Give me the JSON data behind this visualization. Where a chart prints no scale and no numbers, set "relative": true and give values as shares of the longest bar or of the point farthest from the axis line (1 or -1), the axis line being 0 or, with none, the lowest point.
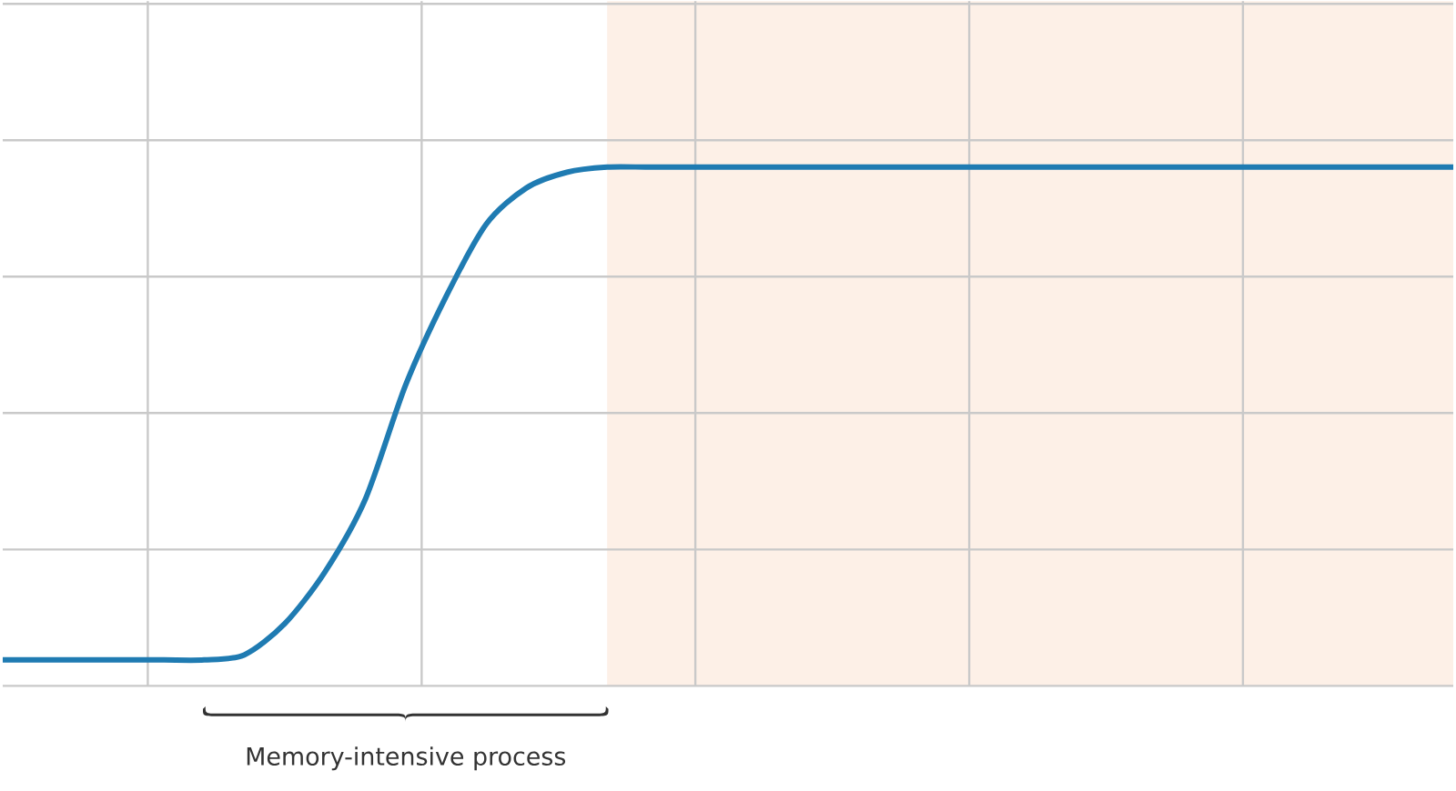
{
  "chart_data": {
    "type": "line",
    "relative": true,
    "grid": true,
    "categories": [
      null,
      null,
      null,
      null,
      null,
      null,
      null,
      null,
      null,
      null,
      null,
      null,
      null,
      null,
      null,
      null,
      null,
      null,
      null,
      null,
      null,
      null,
      null,
      null,
      null,
      null,
      null,
      null,
      null,
      null,
      null,
      null,
      null,
      null,
      null,
      null,
      null
    ],
    "series": [
      {
        "color": "#1f7bb2",
        "values": [
          0.05,
          0.05,
          0.05,
          0.05,
          0.05,
          0.05,
          0.06,
          0.12,
          0.22,
          0.36,
          0.58,
          0.75,
          0.89,
          0.96,
          0.99,
          1,
          1,
          1,
          1,
          1,
          1,
          1,
          1,
          1,
          1,
          1,
          1,
          1,
          1,
          1,
          1,
          1,
          1,
          1,
          1,
          1,
          1
        ]
      }
    ],
    "annotations": [
      "Memory-intensive process"
    ]
  }
}
